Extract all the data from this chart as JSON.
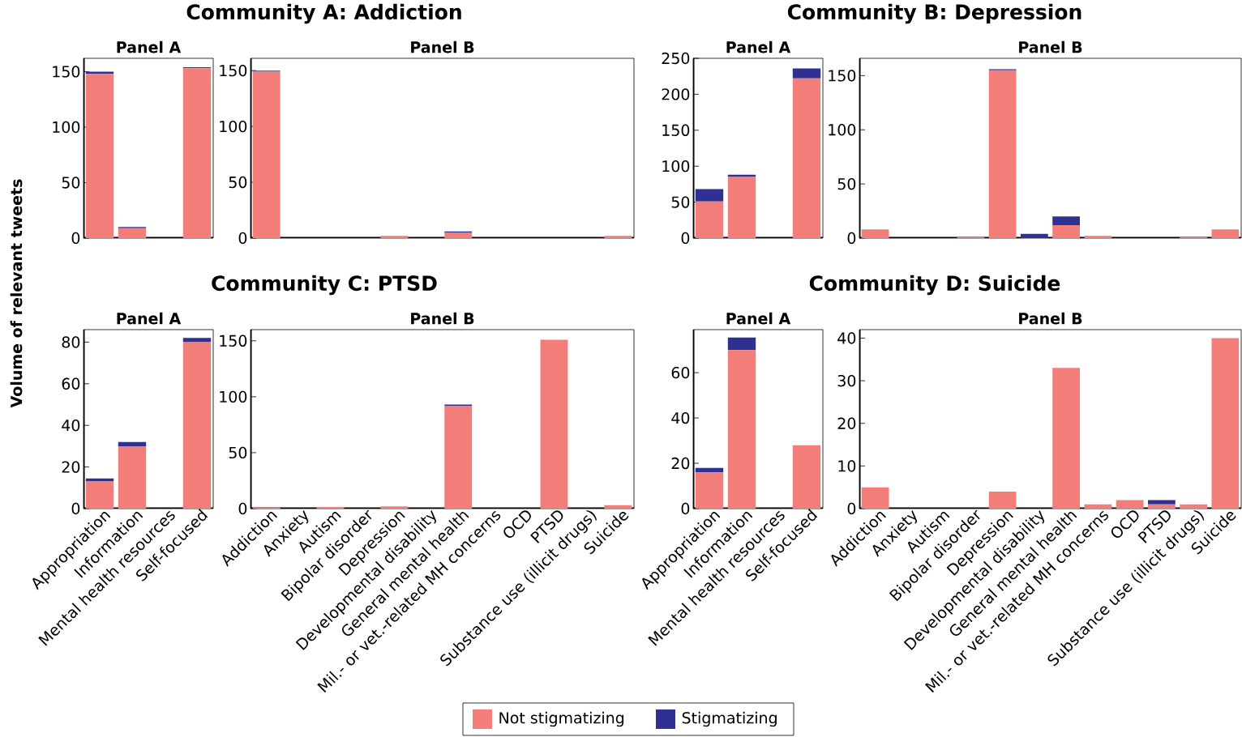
{
  "chart_data": [
    {
      "type": "bar",
      "stacked": true,
      "subtitle": "Panel A",
      "ylabel": "Volume of relevant tweets",
      "legend": "bottom",
      "tick_labels": "y",
      "categories": [
        null,
        null,
        null,
        null
      ],
      "ylim": [
        0,
        162
      ],
      "yticks": [
        0,
        50,
        100,
        150
      ],
      "series": [
        {
          "name": "Not stigmatizing",
          "color": "#f37d78",
          "values": [
            148,
            9,
            0,
            153
          ]
        },
        {
          "name": "Stigmatizing",
          "color": "#2e3192",
          "values": [
            2,
            1,
            0,
            1
          ]
        }
      ]
    },
    {
      "type": "bar",
      "stacked": true,
      "title": "Community A: Addiction",
      "subtitle": "Panel B",
      "tick_labels": "y",
      "categories": [
        null,
        null,
        null,
        null,
        null,
        null,
        null,
        null,
        null,
        null,
        null,
        null
      ],
      "ylim": [
        0,
        161
      ],
      "yticks": [
        0,
        50,
        100,
        150
      ],
      "series": [
        {
          "color": "#f37d78",
          "values": [
            149,
            0,
            0,
            0,
            2,
            0,
            5,
            0,
            0,
            0,
            0,
            2
          ]
        },
        {
          "color": "#2e3192",
          "values": [
            1,
            0,
            0,
            0,
            0,
            0,
            1,
            0,
            0,
            0,
            0,
            0
          ]
        }
      ]
    },
    {
      "type": "bar",
      "stacked": true,
      "subtitle": "Panel A",
      "tick_labels": "y",
      "categories": [
        null,
        null,
        null,
        null
      ],
      "ylim": [
        0,
        250
      ],
      "yticks": [
        0,
        50,
        100,
        150,
        200,
        250
      ],
      "series": [
        {
          "color": "#f37d78",
          "values": [
            51,
            85,
            0,
            222
          ]
        },
        {
          "color": "#2e3192",
          "values": [
            17,
            3,
            0,
            14
          ]
        }
      ]
    },
    {
      "type": "bar",
      "stacked": true,
      "title": "Community B: Depression",
      "subtitle": "Panel B",
      "tick_labels": "y",
      "categories": [
        null,
        null,
        null,
        null,
        null,
        null,
        null,
        null,
        null,
        null,
        null,
        null
      ],
      "ylim": [
        0,
        166
      ],
      "yticks": [
        0,
        50,
        100,
        150
      ],
      "series": [
        {
          "color": "#f37d78",
          "values": [
            8,
            0,
            0,
            1,
            155,
            0,
            12,
            2,
            0,
            0,
            1,
            8
          ]
        },
        {
          "color": "#2e3192",
          "values": [
            0,
            0,
            0,
            0,
            1,
            4,
            8,
            0,
            0,
            0,
            0,
            0
          ]
        }
      ]
    },
    {
      "type": "bar",
      "stacked": true,
      "subtitle": "Panel A",
      "categories": [
        "Appropriation",
        "Information",
        "Mental health resources",
        "Self-focused"
      ],
      "ylim": [
        0,
        86
      ],
      "yticks": [
        0,
        20,
        40,
        60,
        80
      ],
      "series": [
        {
          "color": "#f37d78",
          "values": [
            13,
            30,
            0,
            80
          ]
        },
        {
          "color": "#2e3192",
          "values": [
            1.5,
            2,
            0,
            2
          ]
        }
      ]
    },
    {
      "type": "bar",
      "stacked": true,
      "title": "Community C: PTSD",
      "subtitle": "Panel B",
      "categories": [
        "Addiction",
        "Anxiety",
        "Autism",
        "Bipolar disorder",
        "Depression",
        "Developmental disability",
        "General mental health",
        "Mil.- or vet.-related MH concerns",
        "OCD",
        "PTSD",
        "Substance use (illicit drugs)",
        "Suicide"
      ],
      "ylim": [
        0,
        160
      ],
      "yticks": [
        0,
        50,
        100,
        150
      ],
      "series": [
        {
          "color": "#f37d78",
          "values": [
            1,
            0,
            1.5,
            0,
            2,
            0,
            92,
            0,
            0,
            151,
            0,
            3
          ]
        },
        {
          "color": "#2e3192",
          "values": [
            0,
            0,
            0,
            0,
            0,
            0,
            1,
            0,
            0,
            0,
            0,
            0
          ]
        }
      ]
    },
    {
      "type": "bar",
      "stacked": true,
      "subtitle": "Panel A",
      "categories": [
        "Appropriation",
        "Information",
        "Mental health resources",
        "Self-focused"
      ],
      "ylim": [
        0,
        79
      ],
      "yticks": [
        0,
        20,
        40,
        60
      ],
      "series": [
        {
          "color": "#f37d78",
          "values": [
            16,
            70,
            0,
            28
          ]
        },
        {
          "color": "#2e3192",
          "values": [
            2,
            5.5,
            0,
            0
          ]
        }
      ]
    },
    {
      "type": "bar",
      "stacked": true,
      "title": "Community D: Suicide",
      "subtitle": "Panel B",
      "categories": [
        "Addiction",
        "Anxiety",
        "Autism",
        "Bipolar disorder",
        "Depression",
        "Developmental disability",
        "General mental health",
        "Mil.- or vet.-related MH concerns",
        "OCD",
        "PTSD",
        "Substance use (illicit drugs)",
        "Suicide"
      ],
      "ylim": [
        0,
        42
      ],
      "yticks": [
        0,
        10,
        20,
        30,
        40
      ],
      "series": [
        {
          "color": "#f37d78",
          "values": [
            5,
            0,
            0,
            0,
            4,
            0,
            33,
            1,
            2,
            1,
            1,
            40
          ]
        },
        {
          "color": "#2e3192",
          "values": [
            0,
            0,
            0,
            0,
            0,
            0,
            0,
            0,
            0,
            1,
            0,
            0
          ]
        }
      ]
    }
  ]
}
